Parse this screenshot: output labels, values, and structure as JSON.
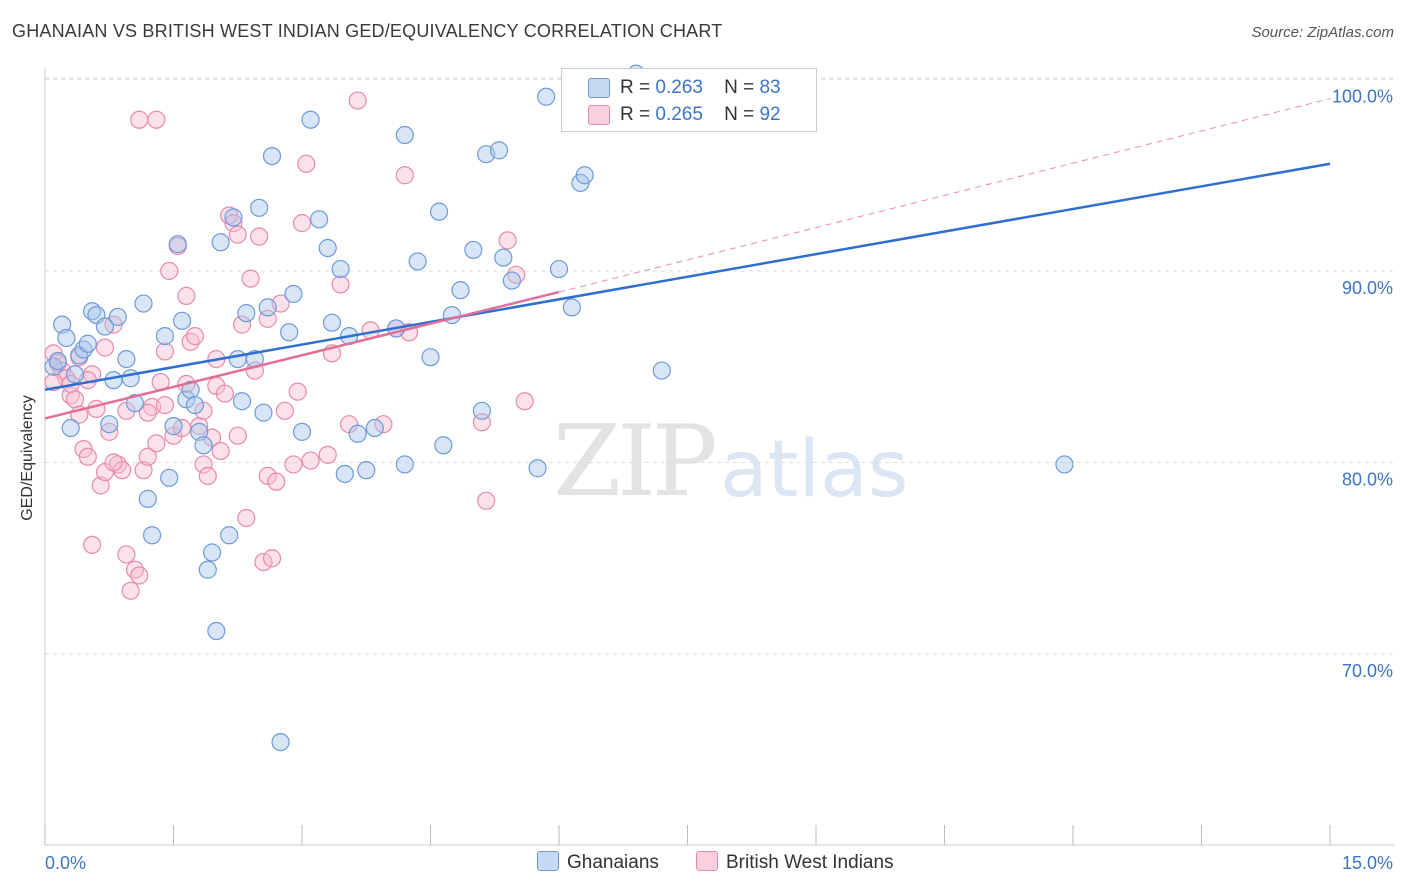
{
  "title": "GHANAIAN VS BRITISH WEST INDIAN GED/EQUIVALENCY CORRELATION CHART",
  "source": "Source: ZipAtlas.com",
  "watermark": {
    "zip": "ZIP",
    "atlas": "atlas"
  },
  "legend": {
    "r_label": "R =",
    "n_label": "N =",
    "series": [
      {
        "name": "Ghanaians",
        "r": "0.263",
        "n": "83"
      },
      {
        "name": "British West Indians",
        "r": "0.265",
        "n": "92"
      }
    ]
  },
  "colors": {
    "blue_fill": "#a9c5ec",
    "blue_stroke": "#6d9bd8",
    "blue_line": "#2f6fd0",
    "pink_fill": "#f6bcd0",
    "pink_stroke": "#e88aac",
    "pink_line": "#e0709a",
    "grid": "#dddddd",
    "axis_text": "#3d74c4"
  },
  "chart_data": {
    "type": "scatter",
    "title": "GHANAIAN VS BRITISH WEST INDIAN GED/EQUIVALENCY CORRELATION CHART",
    "xlabel": "",
    "ylabel": "GED/Equivalency",
    "xlim": [
      0,
      15
    ],
    "ylim": [
      60,
      102
    ],
    "x_tick_labels": [
      "0.0%",
      "15.0%"
    ],
    "y_ticks": [
      70,
      80,
      90,
      100
    ],
    "y_tick_labels": [
      "70.0%",
      "80.0%",
      "90.0%",
      "100.0%"
    ],
    "series": [
      {
        "name": "Ghanaians",
        "r": 0.263,
        "n": 83,
        "trend": {
          "x": [
            0,
            15
          ],
          "y": [
            83.8,
            95.6
          ],
          "style": "solid"
        },
        "points": [
          [
            0.1,
            85.0
          ],
          [
            0.2,
            87.2
          ],
          [
            0.25,
            86.5
          ],
          [
            0.3,
            81.8
          ],
          [
            0.4,
            85.6
          ],
          [
            0.45,
            85.9
          ],
          [
            0.5,
            86.2
          ],
          [
            0.55,
            87.9
          ],
          [
            0.6,
            87.7
          ],
          [
            0.7,
            87.1
          ],
          [
            0.75,
            82.0
          ],
          [
            0.8,
            84.3
          ],
          [
            0.85,
            87.6
          ],
          [
            0.95,
            85.4
          ],
          [
            1.0,
            84.4
          ],
          [
            1.05,
            83.1
          ],
          [
            1.15,
            88.3
          ],
          [
            1.2,
            78.1
          ],
          [
            1.25,
            76.2
          ],
          [
            1.4,
            86.6
          ],
          [
            1.45,
            79.2
          ],
          [
            1.5,
            81.9
          ],
          [
            1.55,
            91.4
          ],
          [
            1.6,
            87.4
          ],
          [
            1.65,
            83.3
          ],
          [
            1.7,
            83.8
          ],
          [
            1.8,
            81.6
          ],
          [
            1.85,
            80.9
          ],
          [
            1.9,
            74.4
          ],
          [
            1.95,
            75.3
          ],
          [
            2.0,
            71.2
          ],
          [
            2.05,
            91.5
          ],
          [
            2.15,
            76.2
          ],
          [
            2.2,
            92.8
          ],
          [
            2.25,
            85.4
          ],
          [
            2.3,
            83.2
          ],
          [
            2.35,
            87.8
          ],
          [
            2.45,
            85.4
          ],
          [
            2.5,
            93.3
          ],
          [
            2.55,
            82.6
          ],
          [
            2.6,
            88.1
          ],
          [
            2.65,
            96.0
          ],
          [
            2.75,
            65.4
          ],
          [
            2.85,
            86.8
          ],
          [
            2.9,
            88.8
          ],
          [
            3.0,
            81.6
          ],
          [
            3.1,
            97.9
          ],
          [
            3.2,
            92.7
          ],
          [
            3.3,
            91.2
          ],
          [
            3.35,
            87.3
          ],
          [
            3.45,
            90.1
          ],
          [
            3.5,
            79.4
          ],
          [
            3.55,
            86.6
          ],
          [
            3.65,
            81.5
          ],
          [
            3.75,
            79.6
          ],
          [
            3.85,
            81.8
          ],
          [
            4.1,
            87.0
          ],
          [
            4.2,
            97.1
          ],
          [
            4.2,
            79.9
          ],
          [
            4.35,
            90.5
          ],
          [
            4.5,
            85.5
          ],
          [
            4.6,
            93.1
          ],
          [
            4.65,
            80.9
          ],
          [
            4.75,
            87.7
          ],
          [
            4.85,
            89.0
          ],
          [
            5.0,
            91.1
          ],
          [
            5.1,
            82.7
          ],
          [
            5.15,
            96.1
          ],
          [
            5.3,
            96.3
          ],
          [
            5.35,
            90.7
          ],
          [
            5.45,
            89.5
          ],
          [
            5.75,
            79.7
          ],
          [
            5.85,
            99.1
          ],
          [
            6.0,
            90.1
          ],
          [
            6.15,
            88.1
          ],
          [
            6.25,
            94.6
          ],
          [
            6.3,
            95.0
          ],
          [
            6.9,
            100.3
          ],
          [
            7.2,
            84.8
          ],
          [
            11.9,
            79.9
          ],
          [
            0.15,
            85.3
          ],
          [
            0.35,
            84.6
          ],
          [
            1.75,
            83.0
          ]
        ]
      },
      {
        "name": "British West Indians",
        "r": 0.265,
        "n": 92,
        "trend": {
          "x": [
            0,
            6
          ],
          "y": [
            82.3,
            88.9
          ],
          "style": "solid"
        },
        "trend_extension": {
          "x": [
            6,
            15
          ],
          "y": [
            88.9,
            99.0
          ],
          "style": "dashed"
        },
        "points": [
          [
            0.1,
            85.7
          ],
          [
            0.15,
            85.2
          ],
          [
            0.2,
            84.8
          ],
          [
            0.25,
            84.4
          ],
          [
            0.3,
            83.5
          ],
          [
            0.35,
            83.3
          ],
          [
            0.4,
            82.5
          ],
          [
            0.45,
            80.7
          ],
          [
            0.5,
            80.3
          ],
          [
            0.55,
            84.6
          ],
          [
            0.6,
            82.8
          ],
          [
            0.65,
            78.8
          ],
          [
            0.7,
            79.5
          ],
          [
            0.75,
            81.6
          ],
          [
            0.8,
            87.2
          ],
          [
            0.85,
            79.9
          ],
          [
            0.9,
            79.6
          ],
          [
            0.95,
            75.2
          ],
          [
            1.0,
            73.3
          ],
          [
            1.05,
            74.4
          ],
          [
            1.1,
            74.1
          ],
          [
            1.15,
            79.6
          ],
          [
            1.2,
            80.3
          ],
          [
            1.25,
            82.9
          ],
          [
            1.3,
            81.0
          ],
          [
            1.35,
            84.2
          ],
          [
            1.4,
            83.0
          ],
          [
            1.45,
            90.0
          ],
          [
            1.5,
            81.4
          ],
          [
            1.55,
            91.3
          ],
          [
            1.6,
            81.8
          ],
          [
            1.65,
            88.7
          ],
          [
            1.7,
            86.3
          ],
          [
            1.75,
            86.6
          ],
          [
            1.8,
            81.9
          ],
          [
            1.85,
            79.9
          ],
          [
            1.9,
            79.3
          ],
          [
            1.95,
            81.3
          ],
          [
            2.0,
            84.0
          ],
          [
            2.05,
            80.6
          ],
          [
            2.1,
            83.6
          ],
          [
            2.15,
            92.9
          ],
          [
            2.2,
            92.5
          ],
          [
            2.25,
            91.9
          ],
          [
            2.3,
            87.2
          ],
          [
            2.35,
            77.1
          ],
          [
            2.4,
            89.6
          ],
          [
            2.45,
            84.8
          ],
          [
            2.5,
            91.8
          ],
          [
            2.55,
            74.8
          ],
          [
            2.6,
            79.3
          ],
          [
            2.65,
            75.0
          ],
          [
            2.7,
            79.0
          ],
          [
            2.75,
            88.3
          ],
          [
            2.8,
            82.7
          ],
          [
            2.9,
            79.9
          ],
          [
            3.0,
            92.5
          ],
          [
            3.05,
            95.6
          ],
          [
            3.1,
            80.1
          ],
          [
            3.3,
            80.4
          ],
          [
            3.45,
            89.3
          ],
          [
            3.55,
            82.0
          ],
          [
            3.65,
            98.9
          ],
          [
            3.8,
            86.9
          ],
          [
            3.95,
            82.0
          ],
          [
            4.1,
            87.0
          ],
          [
            4.2,
            95.0
          ],
          [
            4.25,
            86.8
          ],
          [
            5.1,
            82.1
          ],
          [
            5.15,
            78.0
          ],
          [
            5.4,
            91.6
          ],
          [
            5.5,
            89.8
          ],
          [
            5.6,
            83.2
          ],
          [
            1.1,
            97.9
          ],
          [
            1.3,
            97.9
          ],
          [
            0.55,
            75.7
          ],
          [
            0.4,
            85.5
          ],
          [
            1.4,
            85.8
          ],
          [
            0.3,
            84.1
          ],
          [
            0.95,
            82.7
          ],
          [
            1.65,
            84.1
          ],
          [
            2.25,
            81.4
          ],
          [
            0.7,
            86.0
          ],
          [
            1.85,
            82.7
          ],
          [
            2.6,
            87.5
          ],
          [
            3.35,
            85.7
          ],
          [
            0.5,
            84.3
          ],
          [
            0.8,
            80.0
          ],
          [
            1.2,
            82.6
          ],
          [
            2.0,
            85.4
          ],
          [
            2.95,
            83.7
          ],
          [
            0.1,
            84.2
          ]
        ]
      }
    ]
  }
}
